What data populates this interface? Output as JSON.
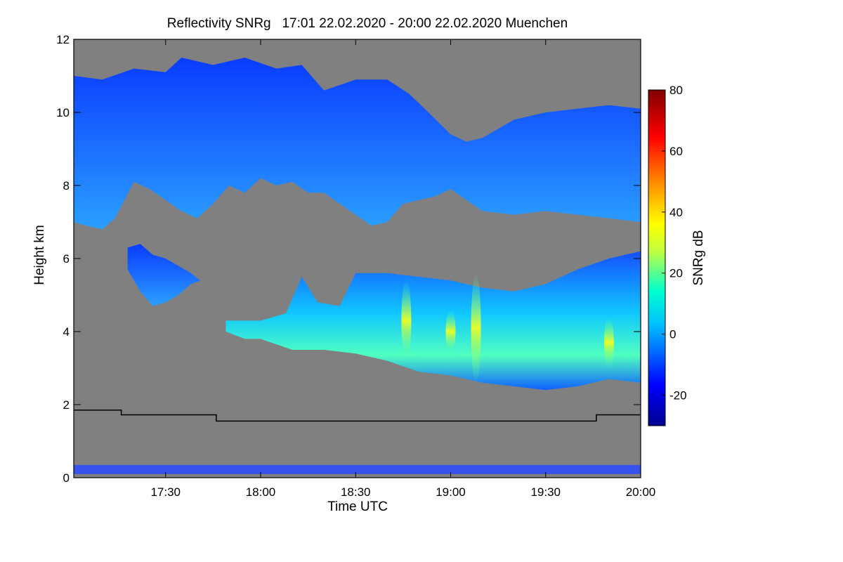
{
  "chart_data": {
    "type": "heatmap",
    "title": "Reflectivity SNRg   17:01 22.02.2020 - 20:00 22.02.2020 Muenchen",
    "xlabel": "Time UTC",
    "ylabel": "Height km",
    "colorbar_label": "SNRg dB",
    "x_range_minutes": [
      1021,
      1200
    ],
    "x_ticks": [
      {
        "label": "17:30",
        "value": 1050
      },
      {
        "label": "18:00",
        "value": 1080
      },
      {
        "label": "18:30",
        "value": 1110
      },
      {
        "label": "19:00",
        "value": 1140
      },
      {
        "label": "19:30",
        "value": 1170
      },
      {
        "label": "20:00",
        "value": 1200
      }
    ],
    "ylim": [
      0,
      12
    ],
    "y_ticks": [
      "0",
      "2",
      "4",
      "6",
      "8",
      "10",
      "12"
    ],
    "colorbar_range": [
      -30,
      80
    ],
    "colorbar_ticks": [
      "-20",
      "0",
      "20",
      "40",
      "60",
      "80"
    ],
    "background_color": "#808080",
    "colormap": [
      "#00008f",
      "#0000ff",
      "#00bfff",
      "#00ffd0",
      "#c0ff40",
      "#ffff00",
      "#ff9000",
      "#ff0000",
      "#800000"
    ],
    "layers": [
      {
        "name": "upper-cloud",
        "mean_snr_db": -12,
        "top": [
          [
            1021,
            11.0
          ],
          [
            1030,
            10.9
          ],
          [
            1040,
            11.2
          ],
          [
            1050,
            11.1
          ],
          [
            1055,
            11.5
          ],
          [
            1065,
            11.3
          ],
          [
            1075,
            11.5
          ],
          [
            1085,
            11.2
          ],
          [
            1093,
            11.3
          ],
          [
            1100,
            10.6
          ],
          [
            1110,
            10.9
          ],
          [
            1120,
            10.9
          ],
          [
            1127,
            10.5
          ],
          [
            1133,
            10.0
          ],
          [
            1140,
            9.4
          ],
          [
            1145,
            9.2
          ],
          [
            1150,
            9.3
          ],
          [
            1160,
            9.8
          ],
          [
            1170,
            10.0
          ],
          [
            1180,
            10.1
          ],
          [
            1190,
            10.2
          ],
          [
            1200,
            10.1
          ]
        ],
        "base": [
          [
            1021,
            7.0
          ],
          [
            1025,
            6.9
          ],
          [
            1030,
            6.8
          ],
          [
            1034,
            7.1
          ],
          [
            1040,
            8.1
          ],
          [
            1045,
            7.9
          ],
          [
            1050,
            7.6
          ],
          [
            1055,
            7.3
          ],
          [
            1060,
            7.1
          ],
          [
            1065,
            7.5
          ],
          [
            1070,
            8.0
          ],
          [
            1075,
            7.8
          ],
          [
            1080,
            8.2
          ],
          [
            1085,
            8.0
          ],
          [
            1090,
            8.1
          ],
          [
            1095,
            7.8
          ],
          [
            1100,
            7.8
          ],
          [
            1105,
            7.5
          ],
          [
            1110,
            7.2
          ],
          [
            1115,
            6.9
          ],
          [
            1120,
            7.0
          ],
          [
            1125,
            7.5
          ],
          [
            1130,
            7.6
          ],
          [
            1135,
            7.7
          ],
          [
            1140,
            7.9
          ],
          [
            1145,
            7.6
          ],
          [
            1150,
            7.3
          ],
          [
            1160,
            7.2
          ],
          [
            1170,
            7.3
          ],
          [
            1180,
            7.2
          ],
          [
            1190,
            7.1
          ],
          [
            1200,
            7.0
          ]
        ]
      },
      {
        "name": "mid-cloud-left",
        "mean_snr_db": -10,
        "top": [
          [
            1038,
            6.3
          ],
          [
            1042,
            6.4
          ],
          [
            1046,
            6.1
          ],
          [
            1050,
            6.0
          ],
          [
            1054,
            5.8
          ],
          [
            1058,
            5.6
          ],
          [
            1061,
            5.4
          ]
        ],
        "base": [
          [
            1038,
            5.7
          ],
          [
            1042,
            5.1
          ],
          [
            1046,
            4.7
          ],
          [
            1050,
            4.8
          ],
          [
            1054,
            5.0
          ],
          [
            1058,
            5.3
          ],
          [
            1061,
            5.4
          ]
        ]
      },
      {
        "name": "lower-cloud",
        "mean_snr_db": 8,
        "top": [
          [
            1069,
            4.3
          ],
          [
            1080,
            4.3
          ],
          [
            1088,
            4.5
          ],
          [
            1093,
            5.5
          ],
          [
            1098,
            4.8
          ],
          [
            1105,
            4.7
          ],
          [
            1110,
            5.6
          ],
          [
            1120,
            5.6
          ],
          [
            1130,
            5.5
          ],
          [
            1140,
            5.4
          ],
          [
            1150,
            5.2
          ],
          [
            1160,
            5.1
          ],
          [
            1170,
            5.3
          ],
          [
            1180,
            5.7
          ],
          [
            1190,
            6.0
          ],
          [
            1200,
            6.2
          ]
        ],
        "base": [
          [
            1069,
            4.0
          ],
          [
            1075,
            3.8
          ],
          [
            1080,
            3.8
          ],
          [
            1090,
            3.5
          ],
          [
            1100,
            3.5
          ],
          [
            1110,
            3.4
          ],
          [
            1120,
            3.2
          ],
          [
            1130,
            2.9
          ],
          [
            1140,
            2.8
          ],
          [
            1150,
            2.6
          ],
          [
            1160,
            2.5
          ],
          [
            1170,
            2.4
          ],
          [
            1180,
            2.5
          ],
          [
            1190,
            2.7
          ],
          [
            1200,
            2.6
          ]
        ]
      }
    ],
    "bright_bands": [
      {
        "time": 1126,
        "height_range": [
          3.2,
          5.4
        ],
        "snr_db": 42
      },
      {
        "time": 1148,
        "height_range": [
          2.6,
          5.6
        ],
        "snr_db": 38
      },
      {
        "time": 1140,
        "height_range": [
          3.4,
          4.6
        ],
        "snr_db": 30
      },
      {
        "time": 1190,
        "height_range": [
          3.0,
          4.4
        ],
        "snr_db": 30
      }
    ],
    "boundary_line": [
      [
        1021,
        1.85
      ],
      [
        1036,
        1.85
      ],
      [
        1036,
        1.72
      ],
      [
        1066,
        1.72
      ],
      [
        1066,
        1.55
      ],
      [
        1186,
        1.55
      ],
      [
        1186,
        1.72
      ],
      [
        1200,
        1.72
      ]
    ],
    "near_ground_band_km": [
      0.1,
      0.35
    ]
  }
}
